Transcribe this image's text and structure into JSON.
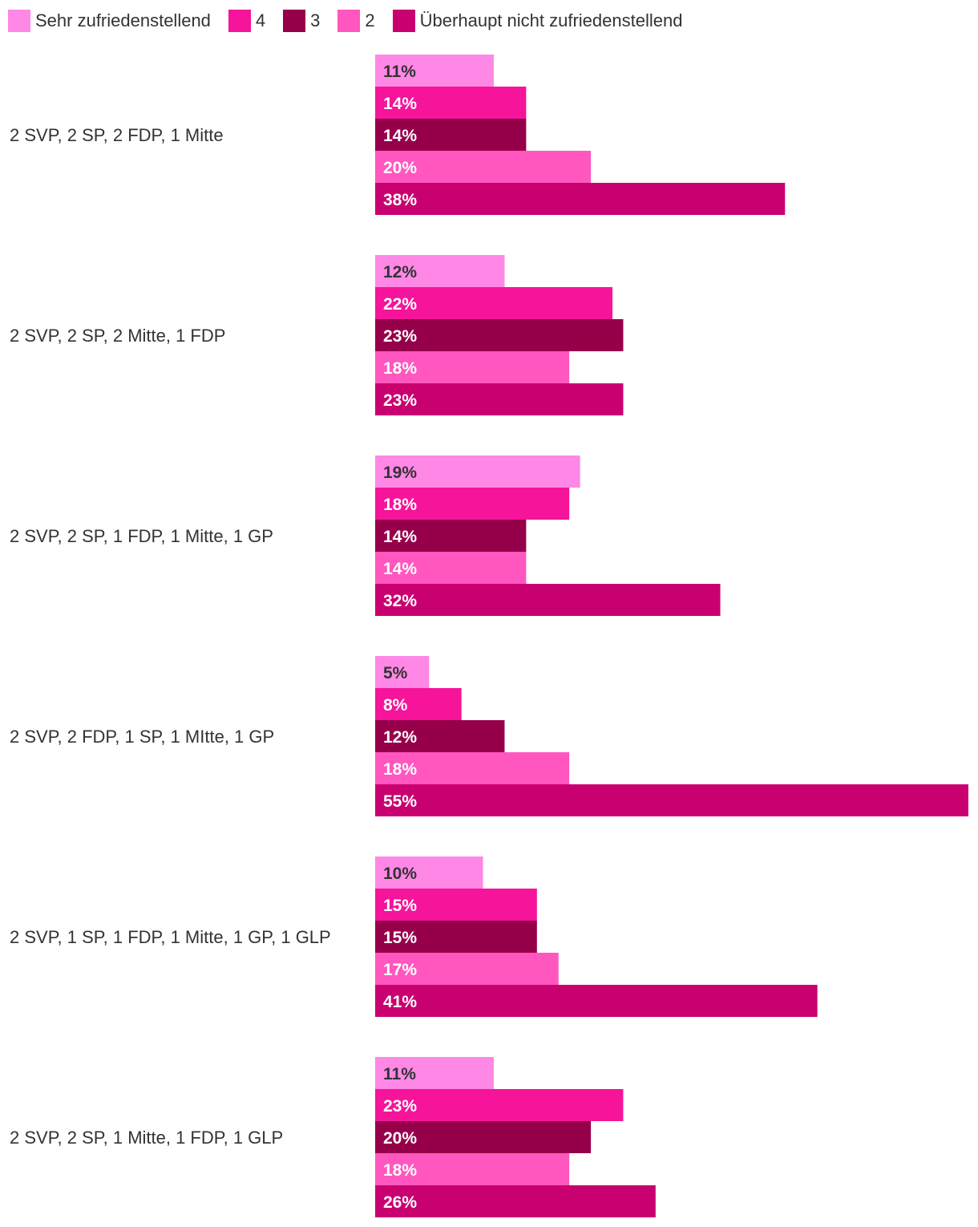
{
  "chart_data": {
    "type": "bar",
    "orientation": "horizontal",
    "categories": [
      "2 SVP, 2 SP, 2 FDP, 1 Mitte",
      "2 SVP, 2 SP, 2 Mitte, 1 FDP",
      "2 SVP, 2 SP, 1 FDP, 1 Mitte, 1 GP",
      "2 SVP, 2 FDP, 1 SP, 1 MItte, 1 GP",
      "2 SVP, 1 SP, 1 FDP, 1 Mitte, 1 GP, 1 GLP",
      "2 SVP, 2 SP, 1 Mitte, 1 FDP, 1 GLP"
    ],
    "series": [
      {
        "name": "Sehr zufriedenstellend",
        "color": "#ff88e6",
        "label_color": "#333333",
        "values": [
          11,
          12,
          19,
          5,
          10,
          11
        ]
      },
      {
        "name": "4",
        "color": "#f5149a",
        "label_color": "#ffffff",
        "values": [
          14,
          22,
          18,
          8,
          15,
          23
        ]
      },
      {
        "name": "3",
        "color": "#96004b",
        "label_color": "#ffffff",
        "values": [
          14,
          23,
          14,
          12,
          15,
          20
        ]
      },
      {
        "name": "2",
        "color": "#ff57bf",
        "label_color": "#ffffff",
        "values": [
          20,
          18,
          14,
          18,
          17,
          18
        ]
      },
      {
        "name": "Überhaupt nicht zufriedenstellend",
        "color": "#c9006f",
        "label_color": "#ffffff",
        "values": [
          38,
          23,
          32,
          55,
          41,
          26
        ]
      }
    ],
    "value_suffix": "%",
    "xlim": [
      0,
      55
    ],
    "legend_position": "top-left",
    "grid": false
  }
}
